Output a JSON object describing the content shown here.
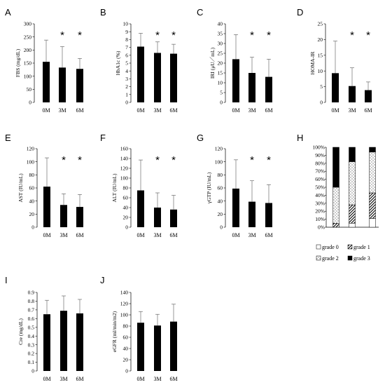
{
  "chart_data": [
    {
      "type": "bar",
      "panel": "A",
      "ylabel": "FBS (mg/dL)",
      "categories": [
        "0M",
        "3M",
        "6M"
      ],
      "values": [
        155,
        133,
        128
      ],
      "errors": [
        83,
        80,
        40
      ],
      "ylim": [
        0,
        300
      ],
      "yticks": [
        0,
        50,
        100,
        150,
        200,
        250,
        300
      ],
      "significance": [
        "",
        "*",
        "*"
      ]
    },
    {
      "type": "bar",
      "panel": "B",
      "ylabel": "HbA1c (%)",
      "categories": [
        "0M",
        "3M",
        "6M"
      ],
      "values": [
        7.1,
        6.3,
        6.2
      ],
      "errors": [
        1.7,
        1.4,
        1.2
      ],
      "ylim": [
        0,
        10
      ],
      "yticks": [
        0,
        1,
        2,
        3,
        4,
        5,
        6,
        7,
        8,
        9,
        10
      ],
      "significance": [
        "",
        "*",
        "*"
      ]
    },
    {
      "type": "bar",
      "panel": "C",
      "ylabel": "IRI (μU／mL)",
      "categories": [
        "0M",
        "3M",
        "6M"
      ],
      "values": [
        22,
        15,
        13
      ],
      "errors": [
        12.5,
        8,
        9
      ],
      "ylim": [
        0,
        40
      ],
      "yticks": [
        0,
        5,
        10,
        15,
        20,
        25,
        30,
        35,
        40
      ],
      "significance": [
        "",
        "*",
        "*"
      ]
    },
    {
      "type": "bar",
      "panel": "D",
      "ylabel": "HOMA-IR",
      "categories": [
        "0M",
        "3M",
        "6M"
      ],
      "values": [
        9.3,
        5.2,
        3.9
      ],
      "errors": [
        10.2,
        5.8,
        2.6
      ],
      "ylim": [
        0,
        25
      ],
      "yticks": [
        0,
        5,
        10,
        15,
        20,
        25
      ],
      "significance": [
        "",
        "*",
        "*"
      ]
    },
    {
      "type": "bar",
      "panel": "E",
      "ylabel": "AST (IU/mL)",
      "categories": [
        "0M",
        "3M",
        "6M"
      ],
      "values": [
        62,
        34,
        31
      ],
      "errors": [
        44,
        17,
        19
      ],
      "ylim": [
        0,
        120
      ],
      "yticks": [
        0,
        20,
        40,
        60,
        80,
        100,
        120
      ],
      "significance": [
        "",
        "*",
        "*"
      ]
    },
    {
      "type": "bar",
      "panel": "F",
      "ylabel": "ALT (IU/mL)",
      "categories": [
        "0M",
        "3M",
        "6M"
      ],
      "values": [
        75,
        40,
        36
      ],
      "errors": [
        62,
        30,
        29
      ],
      "ylim": [
        0,
        160
      ],
      "yticks": [
        0,
        20,
        40,
        60,
        80,
        100,
        120,
        140,
        160
      ],
      "significance": [
        "",
        "*",
        "*"
      ]
    },
    {
      "type": "bar",
      "panel": "G",
      "ylabel": "γGTP (IU/mL)",
      "categories": [
        "0M",
        "3M",
        "6M"
      ],
      "values": [
        59,
        39,
        37
      ],
      "errors": [
        44,
        32,
        28
      ],
      "ylim": [
        0,
        120
      ],
      "yticks": [
        0,
        20,
        40,
        60,
        80,
        100,
        120
      ],
      "significance": [
        "",
        "*",
        "*"
      ]
    },
    {
      "type": "bar",
      "stacked": true,
      "panel": "H",
      "categories": [
        "0M",
        "3M",
        "6M"
      ],
      "ylim": [
        0,
        100
      ],
      "yticks": [
        "0%",
        "10%",
        "20%",
        "30%",
        "40%",
        "50%",
        "60%",
        "70%",
        "80%",
        "90%",
        "100%"
      ],
      "series": [
        {
          "name": "grade 0",
          "values": [
            0,
            5,
            11
          ],
          "fill": "white"
        },
        {
          "name": "grade 1",
          "values": [
            5,
            23,
            32
          ],
          "fill": "hatch"
        },
        {
          "name": "grade 2",
          "values": [
            45,
            54,
            51
          ],
          "fill": "dots"
        },
        {
          "name": "grade 3",
          "values": [
            50,
            18,
            6
          ],
          "fill": "black"
        }
      ],
      "legend_position": "bottom"
    },
    {
      "type": "bar",
      "panel": "I",
      "ylabel": "Cre (mg/dL)",
      "categories": [
        "0M",
        "3M",
        "6M"
      ],
      "values": [
        0.65,
        0.69,
        0.66
      ],
      "errors": [
        0.16,
        0.17,
        0.16
      ],
      "ylim": [
        0,
        0.9
      ],
      "yticks": [
        0,
        0.1,
        0.2,
        0.3,
        0.4,
        0.5,
        0.6,
        0.7,
        0.8,
        0.9
      ],
      "significance": [
        "",
        "",
        ""
      ]
    },
    {
      "type": "bar",
      "panel": "J",
      "ylabel": "eGFR (ml/min/m2)",
      "categories": [
        "0M",
        "3M",
        "6M"
      ],
      "values": [
        86,
        81,
        88
      ],
      "errors": [
        20,
        20,
        31
      ],
      "ylim": [
        0,
        140
      ],
      "yticks": [
        0,
        20,
        40,
        60,
        80,
        100,
        120,
        140
      ],
      "significance": [
        "",
        "",
        ""
      ]
    }
  ]
}
